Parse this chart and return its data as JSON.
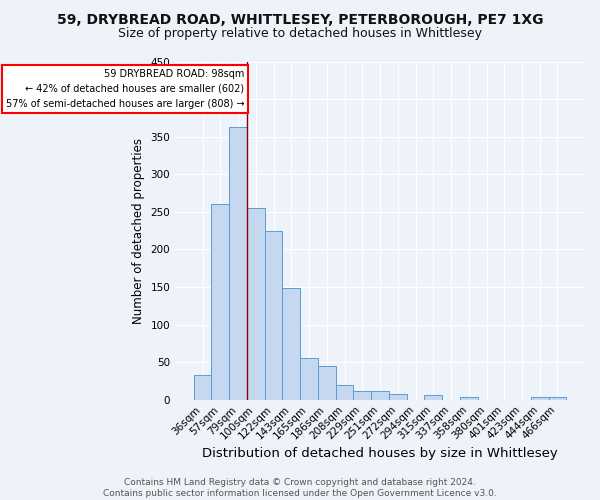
{
  "title1": "59, DRYBREAD ROAD, WHITTLESEY, PETERBOROUGH, PE7 1XG",
  "title2": "Size of property relative to detached houses in Whittlesey",
  "xlabel": "Distribution of detached houses by size in Whittlesey",
  "ylabel": "Number of detached properties",
  "categories": [
    "36sqm",
    "57sqm",
    "79sqm",
    "100sqm",
    "122sqm",
    "143sqm",
    "165sqm",
    "186sqm",
    "208sqm",
    "229sqm",
    "251sqm",
    "272sqm",
    "294sqm",
    "315sqm",
    "337sqm",
    "358sqm",
    "380sqm",
    "401sqm",
    "423sqm",
    "444sqm",
    "466sqm"
  ],
  "values": [
    33,
    260,
    363,
    255,
    225,
    148,
    55,
    45,
    19,
    11,
    11,
    8,
    0,
    6,
    0,
    4,
    0,
    0,
    0,
    4,
    3
  ],
  "bar_color": "#c5d8f0",
  "bar_edge_color": "#5b9bd5",
  "annotation_text_lines": [
    "59 DRYBREAD ROAD: 98sqm",
    "← 42% of detached houses are smaller (602)",
    "57% of semi-detached houses are larger (808) →"
  ],
  "annotation_box_color": "white",
  "annotation_box_edge_color": "red",
  "vline_color": "darkred",
  "footer_text": "Contains HM Land Registry data © Crown copyright and database right 2024.\nContains public sector information licensed under the Open Government Licence v3.0.",
  "bg_color": "#eef2f9",
  "grid_color": "white",
  "ylim": [
    0,
    450
  ],
  "title1_fontsize": 10,
  "title2_fontsize": 9,
  "xlabel_fontsize": 9.5,
  "ylabel_fontsize": 8.5,
  "tick_fontsize": 7.5,
  "footer_fontsize": 6.5
}
